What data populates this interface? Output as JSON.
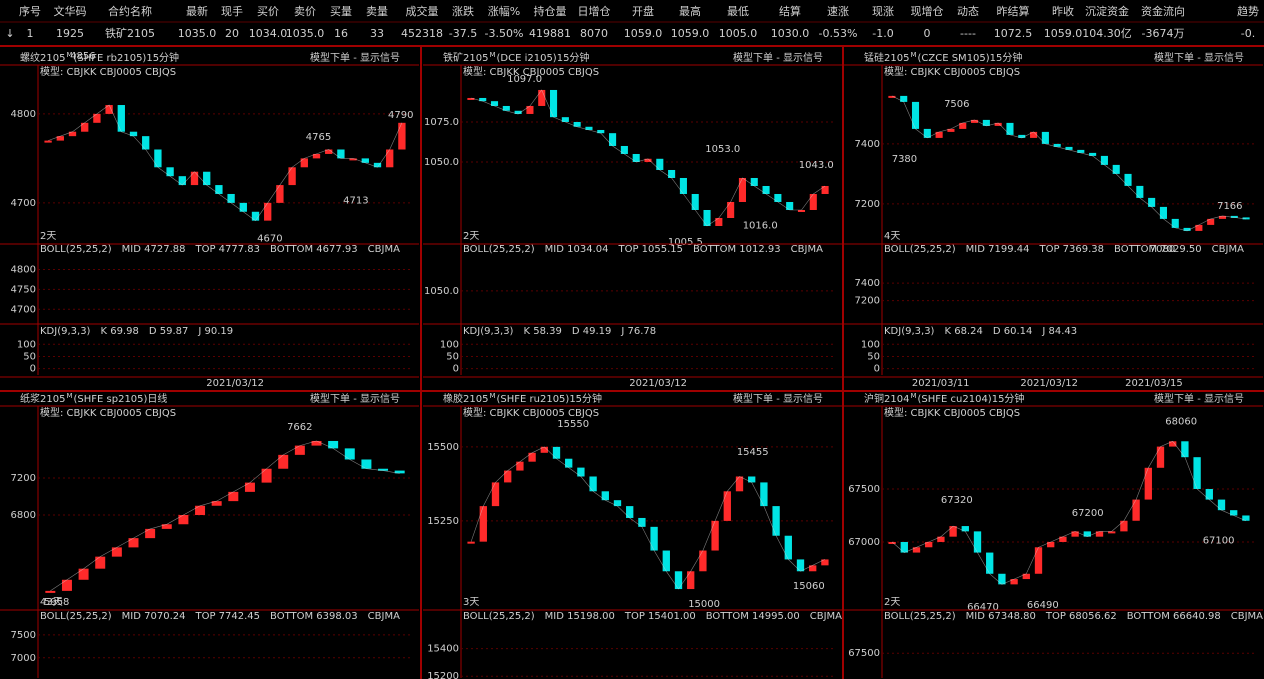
{
  "colors": {
    "up": "#ff2a2a",
    "down": "#00e5e5",
    "high": "#ff4a4a",
    "low": "#40e0e0",
    "signal": "#ffff00",
    "header": "#e6dcae",
    "row": "#3cff3c"
  },
  "header": {
    "columns": [
      "序号",
      "文华码",
      "合约名称",
      "最新",
      "现手",
      "买价",
      "卖价",
      "买量",
      "卖量",
      "成交量",
      "涨跌",
      "涨幅%",
      "持仓量",
      "日增仓",
      "开盘",
      "最高",
      "最低",
      "结算",
      "速涨",
      "现涨",
      "现增仓",
      "动态",
      "昨结算",
      "昨收",
      "沉淀资金",
      "资金流向",
      "趋势"
    ]
  },
  "row": {
    "trend_arrow": "↓",
    "cells": [
      "1",
      "1925",
      "铁矿2105",
      "1035.0",
      "20",
      "1034.0",
      "1035.0",
      "16",
      "33",
      "452318",
      "-37.5",
      "-3.50%",
      "419881",
      "8070",
      "1059.0",
      "1059.0",
      "1005.0",
      "1030.0",
      "-0.53%",
      "-1.0",
      "0",
      "----",
      "1072.5",
      "1059.0",
      "104.30亿",
      "-3674万",
      "-0."
    ]
  },
  "panels": [
    {
      "title": "螺纹2105",
      "badge": "M",
      "contract": "(SHFE rb2105)15分钟",
      "signal": "模型下单 - 显示信号",
      "model": "模型: CBJKK CBJ0005 CBJQS",
      "days": "2天",
      "price": {
        "ylim": [
          4656,
          4855
        ],
        "yticks": [
          4800,
          4700
        ],
        "closes": [
          4770,
          4775,
          4780,
          4790,
          4800,
          4810,
          4780,
          4775,
          4760,
          4740,
          4730,
          4720,
          4735,
          4720,
          4710,
          4700,
          4690,
          4680,
          4700,
          4720,
          4740,
          4750,
          4755,
          4760,
          4750,
          4750,
          4745,
          4740,
          4760,
          4790
        ],
        "annotations": [
          4856,
          4765,
          4713,
          4670,
          4790
        ]
      },
      "boll": {
        "params": "BOLL(25,25,2)",
        "mid": "MID 4727.88",
        "top": "TOP 4777.83",
        "bottom": "BOTTOM 4677.93",
        "ma": "CBJMA",
        "ylim": [
          4668,
          4839
        ],
        "yticks": [
          4800,
          4750,
          4700
        ]
      },
      "kdj": {
        "params": "KDJ(9,3,3)",
        "k": "K 69.98",
        "d": "D 59.87",
        "j": "J 90.19",
        "ylim": [
          -26,
          130
        ],
        "yticks": [
          100,
          50,
          0
        ]
      },
      "dates": [
        "2021/03/12"
      ]
    },
    {
      "title": "铁矿2105",
      "badge": "M",
      "contract": "(DCE i2105)15分钟",
      "signal": "模型下单 - 显示信号",
      "model": "模型: CBJKK CBJ0005 CBJQS",
      "days": "2天",
      "price": {
        "ylim": [
          1000,
          1110.6
        ],
        "yticks": [
          {
            "value": 1075,
            "label": "1075.0"
          },
          {
            "value": 1050,
            "label": "1050.0"
          }
        ],
        "closes": [
          1090,
          1088,
          1085,
          1082,
          1080,
          1085,
          1095,
          1078,
          1075,
          1072,
          1070,
          1068,
          1060,
          1055,
          1050,
          1052,
          1045,
          1040,
          1030,
          1020,
          1010,
          1015,
          1025,
          1040,
          1035,
          1030,
          1025,
          1020,
          1020,
          1030,
          1035
        ],
        "annotations": [
          {
            "value": 1097,
            "label": "1097.0"
          },
          {
            "value": 1053,
            "label": "1053.0"
          },
          {
            "value": 1043,
            "label": "1043.0"
          },
          1005.5,
          {
            "value": 1016,
            "label": "1016.0"
          }
        ]
      },
      "boll": {
        "params": "BOLL(25,25,2)",
        "mid": "MID 1034.04",
        "top": "TOP 1055.15",
        "bottom": "BOTTOM 1012.93",
        "ma": "CBJMA",
        "ylim": [
          1018,
          1088
        ],
        "yticks": [
          {
            "value": 1050,
            "label": "1050.0"
          }
        ]
      },
      "kdj": {
        "params": "KDJ(9,3,3)",
        "k": "K 58.39",
        "d": "D 49.19",
        "j": "J 76.78",
        "ylim": [
          -26,
          130
        ],
        "yticks": [
          100,
          50,
          0
        ]
      },
      "dates": [
        "2021/03/12"
      ]
    },
    {
      "title": "锰硅2105",
      "badge": "M",
      "contract": "(CZCE SM105)15分钟",
      "signal": "模型下单 - 显示信号",
      "model": "模型: CBJKK CBJ0005 CBJQS",
      "days": "4天",
      "price": {
        "ylim": [
          7073,
          7663
        ],
        "yticks": [
          7400,
          7200
        ],
        "closes": [
          7560,
          7540,
          7450,
          7420,
          7440,
          7450,
          7470,
          7480,
          7460,
          7470,
          7430,
          7420,
          7440,
          7400,
          7390,
          7380,
          7370,
          7360,
          7330,
          7300,
          7260,
          7220,
          7190,
          7150,
          7120,
          7110,
          7130,
          7150,
          7160,
          7155,
          7150
        ],
        "annotations": [
          7506,
          7380,
          7166,
          7080
        ]
      },
      "boll": {
        "params": "BOLL(25,25,2)",
        "mid": "MID 7199.44",
        "top": "TOP 7369.38",
        "bottom": "BOTTOM 7029.50",
        "ma": "CBJMA",
        "ylim": [
          6956,
          7733
        ],
        "yticks": [
          7400,
          7200
        ]
      },
      "kdj": {
        "params": "KDJ(9,3,3)",
        "k": "K 68.24",
        "d": "D 60.14",
        "j": "J 84.43",
        "ylim": [
          -26,
          130
        ],
        "yticks": [
          100,
          50,
          0
        ]
      },
      "dates": [
        "2021/03/11",
        "2021/03/12",
        "2021/03/15"
      ]
    },
    {
      "title": "纸浆2105",
      "badge": "M",
      "contract": "(SHFE sp2105)日线",
      "signal": "模型下单 - 显示信号",
      "model": "模型: CBJKK CBJ0005 CBJQS",
      "days": "43天",
      "price": {
        "ylim": [
          5795,
          7978
        ],
        "yticks": [
          7200,
          6800
        ],
        "closes": [
          5980,
          6100,
          6220,
          6350,
          6450,
          6550,
          6650,
          6700,
          6800,
          6900,
          6950,
          7050,
          7150,
          7300,
          7450,
          7550,
          7600,
          7520,
          7400,
          7300,
          7280,
          7250
        ],
        "annotations": [
          7662,
          5958
        ]
      },
      "boll": {
        "params": "BOLL(25,25,2)",
        "mid": "MID 7070.24",
        "top": "TOP 7742.45",
        "bottom": "BOTTOM 6398.03",
        "ma": "CBJMA",
        "ylim": [
          6560,
          7780
        ],
        "yticks": [
          7500,
          7000
        ]
      }
    },
    {
      "title": "橡胶2105",
      "badge": "M",
      "contract": "(SHFE ru2105)15分钟",
      "signal": "模型下单 - 显示信号",
      "model": "模型: CBJKK CBJ0005 CBJQS",
      "days": "3天",
      "price": {
        "ylim": [
          14956,
          15638
        ],
        "yticks": [
          15500,
          15250
        ],
        "closes": [
          15180,
          15300,
          15380,
          15420,
          15450,
          15480,
          15500,
          15460,
          15430,
          15400,
          15350,
          15320,
          15300,
          15260,
          15230,
          15150,
          15080,
          15020,
          15080,
          15150,
          15250,
          15350,
          15400,
          15380,
          15300,
          15200,
          15120,
          15080,
          15100,
          15120
        ],
        "annotations": [
          15550,
          15455,
          15060,
          15000
        ]
      },
      "boll": {
        "params": "BOLL(25,25,2)",
        "mid": "MID 15198.00",
        "top": "TOP 15401.00",
        "bottom": "BOTTOM 14995.00",
        "ma": "CBJMA",
        "ylim": [
          15187,
          15593
        ],
        "yticks": [
          15400,
          15200
        ]
      }
    },
    {
      "title": "沪铜2104",
      "badge": "M",
      "contract": "(SHFE cu2104)15分钟",
      "signal": "模型下单 - 显示信号",
      "model": "模型: CBJKK CBJ0005 CBJQS",
      "days": "2天",
      "price": {
        "ylim": [
          66377,
          68283
        ],
        "yticks": [
          67500,
          67000
        ],
        "closes": [
          67000,
          66900,
          66950,
          67000,
          67050,
          67150,
          67100,
          66900,
          66700,
          66600,
          66650,
          66700,
          66950,
          67000,
          67050,
          67100,
          67050,
          67100,
          67100,
          67200,
          67400,
          67700,
          67900,
          67950,
          67800,
          67500,
          67400,
          67300,
          67250,
          67200
        ],
        "annotations": [
          68060,
          67320,
          67200,
          67100,
          66470,
          66490
        ]
      },
      "boll": {
        "params": "BOLL(25,25,2)",
        "mid": "MID 67348.80",
        "top": "TOP 68056.62",
        "bottom": "BOTTOM 66640.98",
        "ma": "CBJMA",
        "ylim": [
          67095,
          68010
        ],
        "yticks": [
          67500
        ]
      }
    }
  ]
}
